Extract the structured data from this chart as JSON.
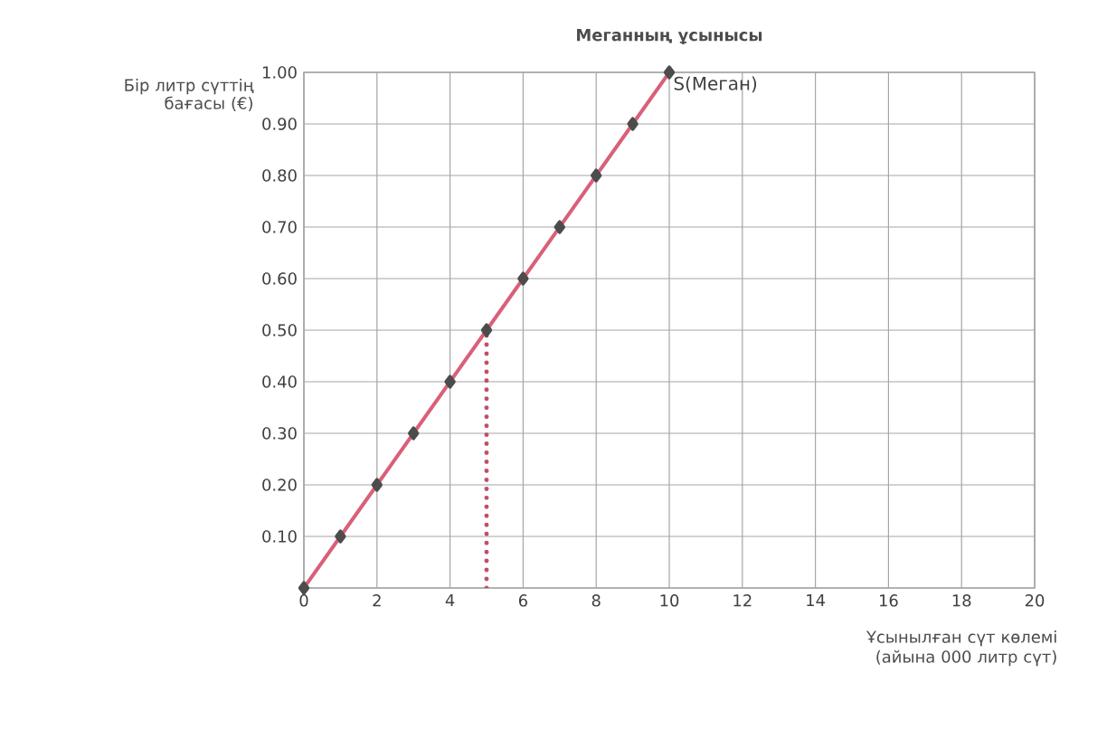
{
  "chart_data": {
    "type": "line",
    "title": "Меганның ұсынысы",
    "ylabel": "Бір литр сүттің бағасы (€)",
    "xlabel": "Ұсынылған сүт көлемі (айына 000 литр сүт)",
    "x": [
      0,
      1,
      2,
      3,
      4,
      5,
      6,
      7,
      8,
      9,
      10
    ],
    "series": [
      {
        "color": "#d9607a",
        "values": [
          0,
          0.1,
          0.2,
          0.3,
          0.4,
          0.5,
          0.6,
          0.7,
          0.8,
          0.9,
          1.0
        ],
        "marker": "diamond",
        "line_style": "solid"
      },
      {
        "type": "line",
        "x": [
          5,
          5
        ],
        "color": "#c0506a",
        "values": [
          0,
          0.5
        ],
        "marker": "none",
        "line_style": "dotted"
      }
    ],
    "xlim": [
      0,
      20
    ],
    "ylim": [
      0,
      1
    ],
    "xticks": [
      0,
      2,
      4,
      6,
      8,
      10,
      12,
      14,
      16,
      18,
      20
    ],
    "yticks": [
      {
        "value": 0,
        "label": null
      },
      {
        "value": 0.1,
        "label": "0.10"
      },
      {
        "value": 0.2,
        "label": "0.20"
      },
      {
        "value": 0.3,
        "label": "0.30"
      },
      {
        "value": 0.4,
        "label": "0.40"
      },
      {
        "value": 0.5,
        "label": "0.50"
      },
      {
        "value": 0.6,
        "label": "0.60"
      },
      {
        "value": 0.7,
        "label": "0.70"
      },
      {
        "value": 0.8,
        "label": "0.80"
      },
      {
        "value": 0.9,
        "label": "0.90"
      },
      {
        "value": 1.0,
        "label": "1.00"
      }
    ],
    "grid": true,
    "annotations": [
      {
        "text": "S(Меган)",
        "x": 10,
        "y": 1.0
      }
    ]
  }
}
